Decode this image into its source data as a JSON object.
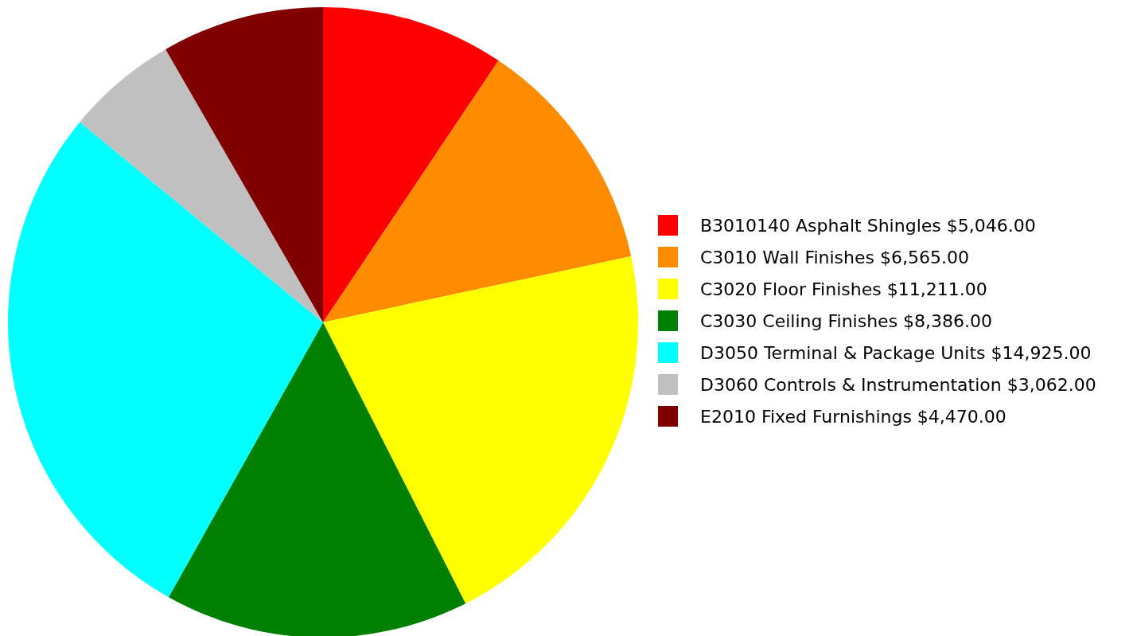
{
  "chart_data": {
    "type": "pie",
    "categories": [
      "B3010140 Asphalt Shingles $5,046.00",
      "C3010 Wall Finishes $6,565.00",
      "C3020 Floor Finishes $11,211.00",
      "C3030 Ceiling Finishes $8,386.00",
      "D3050 Terminal & Package Units $14,925.00",
      "D3060 Controls & Instrumentation $3,062.00",
      "E2010 Fixed Furnishings $4,470.00"
    ],
    "values": [
      5046,
      6565,
      11211,
      8386,
      14925,
      3062,
      4470
    ],
    "colors": [
      "#ff0000",
      "#ff8c00",
      "#ffff00",
      "#008000",
      "#00ffff",
      "#c0c0c0",
      "#800000"
    ],
    "legend": "right"
  }
}
